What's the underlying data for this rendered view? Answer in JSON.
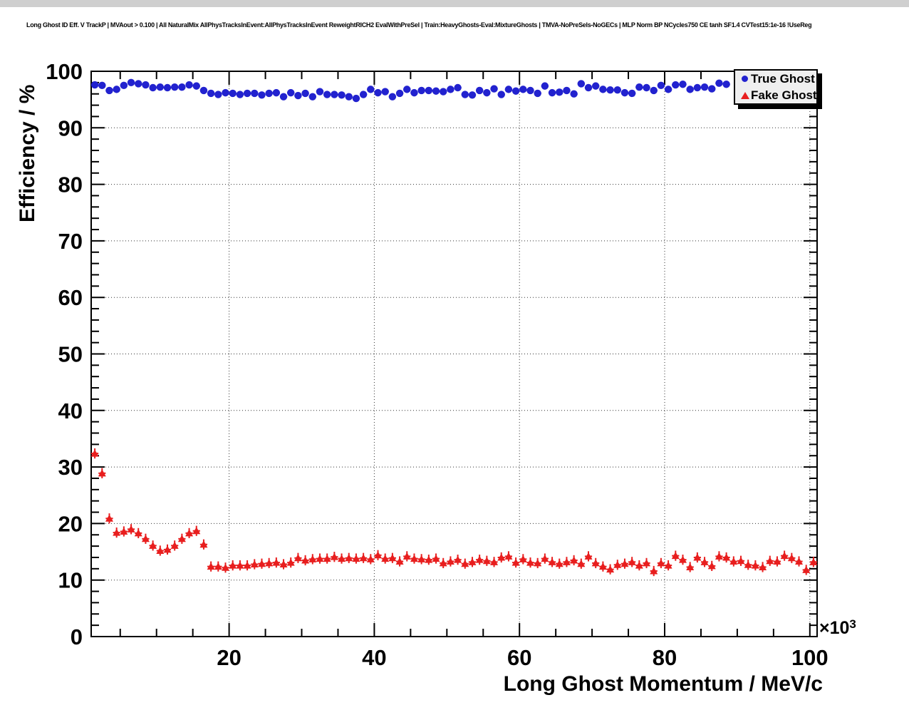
{
  "chart_data": {
    "type": "scatter",
    "title": "Long Ghost ID Eff. V TrackP | MVAout > 0.100 | All NaturalMix AllPhysTracksInEvent:AllPhysTracksInEvent ReweightRICH2 EvalWithPreSel | Train:HeavyGhosts-Eval:MixtureGhosts | TMVA-NoPreSels-NoGECs | MLP Norm BP NCycles750 CE tanh SF1.4 CVTest15:1e-16 !UseReg",
    "xlabel": "Long Ghost Momentum / MeV/c",
    "ylabel": "Efficiency / %",
    "x_exponent": {
      "base": "×10",
      "power": "3"
    },
    "xlim": [
      1,
      101
    ],
    "ylim": [
      0,
      100
    ],
    "x_major_ticks": [
      20,
      40,
      60,
      80,
      100
    ],
    "x_minor_tick_step": 5,
    "y_major_ticks": [
      0,
      10,
      20,
      30,
      40,
      50,
      60,
      70,
      80,
      90,
      100
    ],
    "y_minor_tick_step": 2,
    "grid": {
      "style": "dotted",
      "x_lines": [
        20,
        40,
        60,
        80,
        100
      ],
      "y_lines": [
        10,
        20,
        30,
        40,
        50,
        60,
        70,
        80,
        90
      ]
    },
    "legend": {
      "position": "top-right",
      "entries": [
        {
          "label": "True Ghost",
          "marker": "circle",
          "color": "#2222cf"
        },
        {
          "label": "Fake Ghost",
          "marker": "triangle-up",
          "color": "#e81e1e"
        }
      ]
    },
    "series": [
      {
        "name": "True Ghost",
        "marker": "circle",
        "color": "#2222cf",
        "x_start": 1.5,
        "x_step": 1,
        "x_err": 0.5,
        "y_err": 0.25,
        "values": [
          97.6,
          97.5,
          96.6,
          96.8,
          97.5,
          98.0,
          97.8,
          97.6,
          97.1,
          97.2,
          97.1,
          97.2,
          97.2,
          97.6,
          97.4,
          96.6,
          96.1,
          95.9,
          96.2,
          96.1,
          95.9,
          96.1,
          96.1,
          95.8,
          96.1,
          96.2,
          95.5,
          96.2,
          95.7,
          96.1,
          95.5,
          96.4,
          95.9,
          95.9,
          95.8,
          95.5,
          95.2,
          95.9,
          96.8,
          96.2,
          96.4,
          95.5,
          96.1,
          96.8,
          96.2,
          96.6,
          96.6,
          96.5,
          96.4,
          96.8,
          97.1,
          95.9,
          95.8,
          96.6,
          96.2,
          96.9,
          95.9,
          96.8,
          96.5,
          96.8,
          96.6,
          96.1,
          97.4,
          96.2,
          96.3,
          96.6,
          96.0,
          97.8,
          97.1,
          97.4,
          96.8,
          96.7,
          96.7,
          96.2,
          96.1,
          97.2,
          97.1,
          96.6,
          97.5,
          96.8,
          97.6,
          97.7,
          96.8,
          97.1,
          97.2,
          96.9,
          97.9,
          97.7
        ]
      },
      {
        "name": "Fake Ghost",
        "marker": "triangle-up",
        "color": "#e81e1e",
        "x_start": 1.5,
        "x_step": 1,
        "x_err": 0.5,
        "y_err": 0.9,
        "values": [
          32.4,
          28.9,
          20.9,
          18.4,
          18.6,
          19.0,
          18.3,
          17.3,
          16.1,
          15.2,
          15.4,
          16.1,
          17.3,
          18.3,
          18.7,
          16.3,
          12.4,
          12.4,
          12.2,
          12.6,
          12.6,
          12.6,
          12.8,
          12.9,
          13.0,
          13.1,
          12.8,
          13.1,
          13.9,
          13.5,
          13.7,
          13.8,
          13.8,
          14.1,
          13.8,
          13.9,
          13.8,
          13.9,
          13.7,
          14.4,
          13.8,
          13.9,
          13.3,
          14.2,
          13.8,
          13.7,
          13.6,
          13.8,
          13.0,
          13.3,
          13.6,
          12.9,
          13.2,
          13.6,
          13.4,
          13.2,
          14.0,
          14.2,
          13.1,
          13.7,
          13.1,
          13.0,
          13.8,
          13.2,
          12.9,
          13.2,
          13.5,
          12.9,
          14.2,
          13.0,
          12.4,
          11.9,
          12.7,
          12.9,
          13.2,
          12.6,
          13.0,
          11.6,
          13.0,
          12.6,
          14.3,
          13.6,
          12.3,
          14.0,
          13.2,
          12.5,
          14.2,
          14.0,
          13.3,
          13.4,
          12.7,
          12.6,
          12.3,
          13.4,
          13.3,
          14.3,
          13.9,
          13.3,
          11.8,
          13.2
        ]
      }
    ]
  }
}
